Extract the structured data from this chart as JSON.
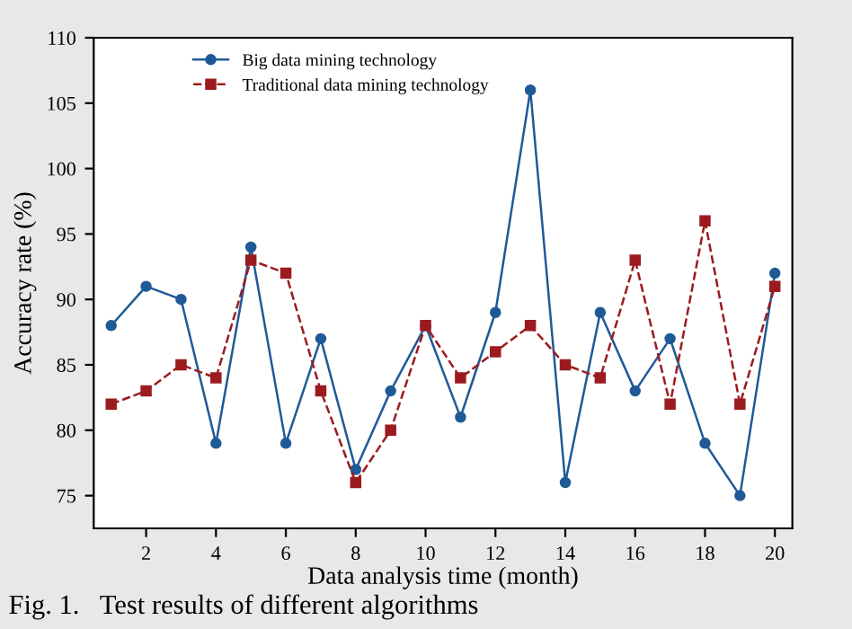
{
  "chart_data": {
    "type": "line",
    "xlabel": "Data analysis time (month)",
    "ylabel": "Accuracy rate (%)",
    "x": [
      1,
      2,
      3,
      4,
      5,
      6,
      7,
      8,
      9,
      10,
      11,
      12,
      13,
      14,
      15,
      16,
      17,
      18,
      19,
      20
    ],
    "series": [
      {
        "name": "Big data mining technology",
        "color": "#1f5a96",
        "marker": "circle",
        "line_style": "solid",
        "values": [
          88,
          91,
          90,
          79,
          94,
          79,
          87,
          77,
          83,
          88,
          81,
          89,
          106,
          76,
          89,
          83,
          87,
          79,
          75,
          92
        ]
      },
      {
        "name": "Traditional data mining technology",
        "color": "#9b1b1f",
        "marker": "square",
        "line_style": "dashed",
        "values": [
          82,
          83,
          85,
          84,
          93,
          92,
          83,
          76,
          80,
          88,
          84,
          86,
          88,
          85,
          84,
          93,
          82,
          96,
          82,
          91
        ]
      }
    ],
    "xlim": [
      0.5,
      20.5
    ],
    "xticks": [
      2,
      4,
      6,
      8,
      10,
      12,
      14,
      16,
      18,
      20
    ],
    "ylim": [
      72.5,
      110
    ],
    "yticks": [
      75,
      80,
      85,
      90,
      95,
      100,
      105,
      110
    ],
    "grid": false,
    "legend": "top left",
    "annotations": [
      "Fig. 1.   Test results of different algorithms"
    ]
  }
}
